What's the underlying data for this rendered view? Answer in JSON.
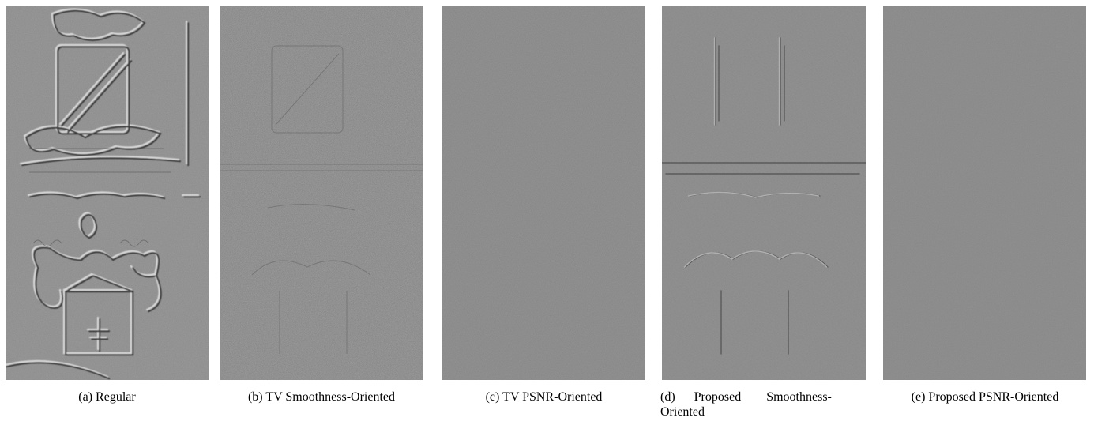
{
  "figure": {
    "panels": [
      {
        "id": "a",
        "caption": "(a) Regular"
      },
      {
        "id": "b",
        "caption": "(b) TV Smoothness-Oriented"
      },
      {
        "id": "c",
        "caption": "(c) TV PSNR-Oriented"
      },
      {
        "id": "d",
        "caption_line1": "(d)      Proposed        Smoothness-",
        "caption_line2": "Oriented"
      },
      {
        "id": "e",
        "caption": "(e) Proposed PSNR-Oriented"
      }
    ],
    "colors": {
      "background": "#ffffff",
      "image_gray": "#808080",
      "relief_gray": "#8a8a8a",
      "text": "#000000"
    }
  }
}
